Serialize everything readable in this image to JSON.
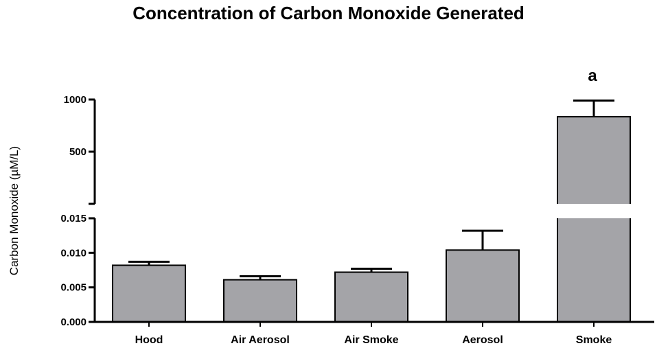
{
  "chart_data": {
    "type": "bar",
    "title": "Concentration of Carbon Monoxide Generated",
    "ylabel": "Carbon Monoxide (µM/L)",
    "xlabel": "",
    "categories": [
      "Hood",
      "Air Aerosol",
      "Air Smoke",
      "Aerosol",
      "Smoke"
    ],
    "values": [
      0.0082,
      0.0061,
      0.0072,
      0.0104,
      835
    ],
    "error_upper": [
      0.0087,
      0.0066,
      0.0077,
      0.0132,
      990
    ],
    "annotations": [
      {
        "category": "Smoke",
        "text": "a"
      }
    ],
    "axis_break": true,
    "y_segments": [
      {
        "ylim": [
          0,
          0.015
        ],
        "ticks": [
          "0.000",
          "0.005",
          "0.010",
          "0.015"
        ]
      },
      {
        "ylim": [
          0,
          1000
        ],
        "ticks": [
          "500",
          "1000"
        ]
      }
    ],
    "bar_color": "#a4a4a8",
    "grid": false,
    "legend": "none"
  }
}
